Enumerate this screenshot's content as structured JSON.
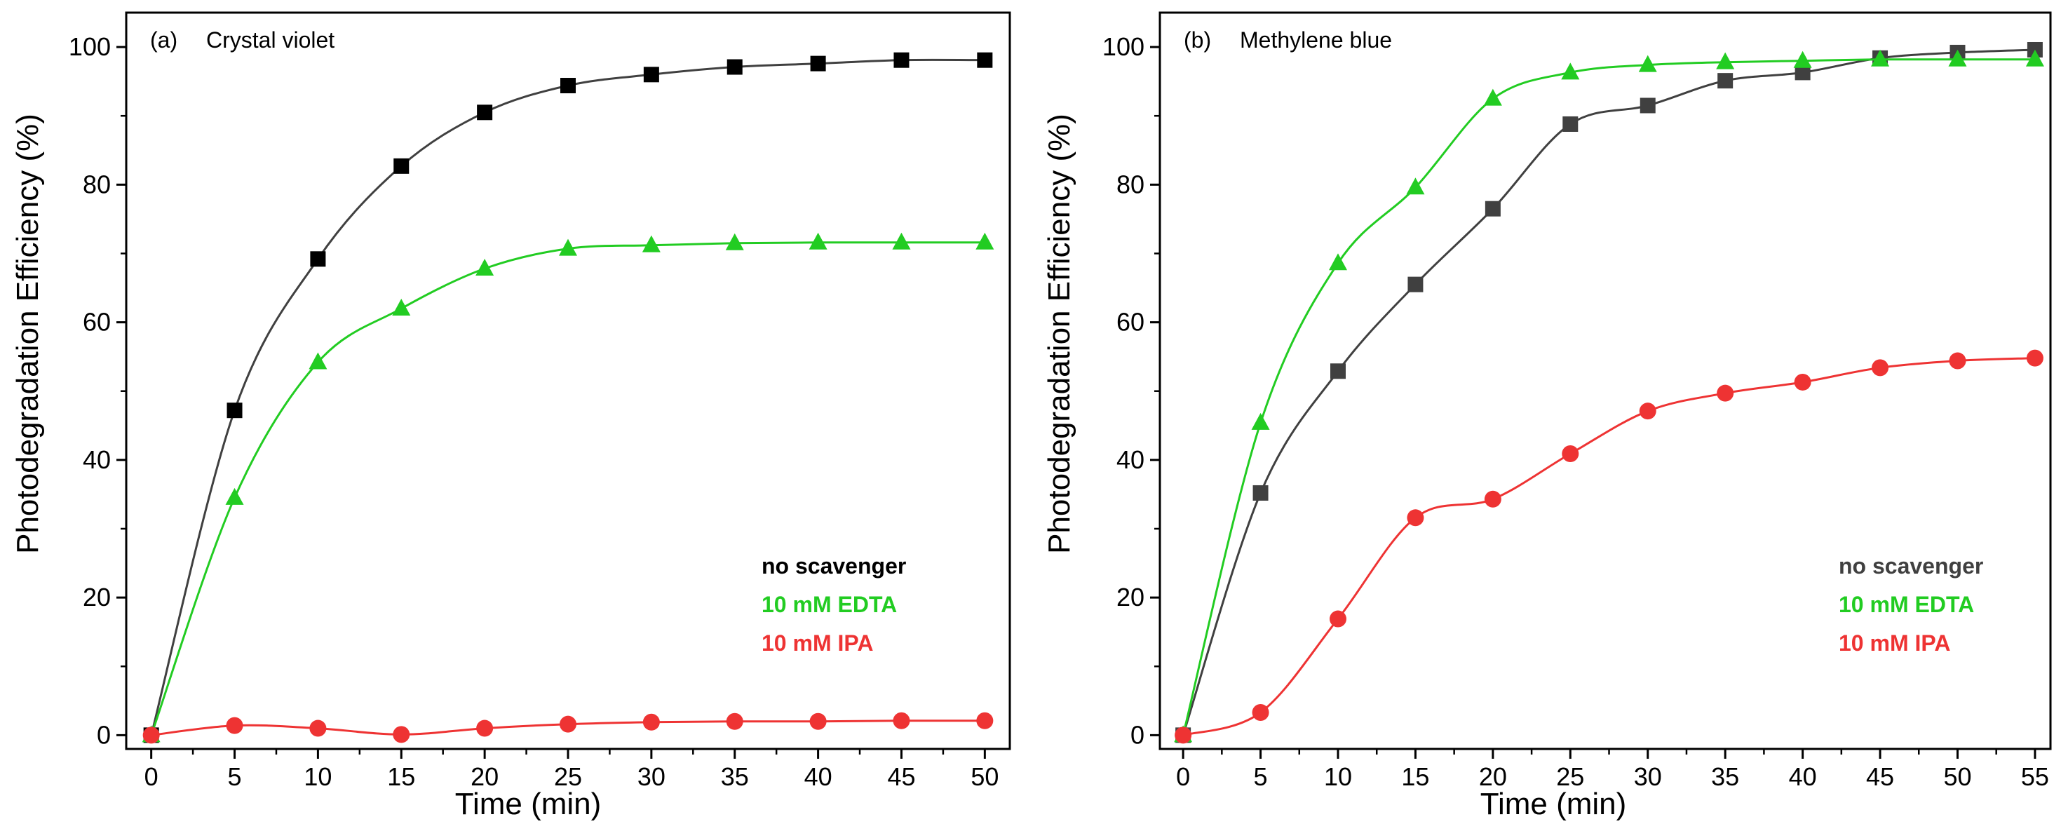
{
  "chart_data": [
    {
      "type": "scatter",
      "panel_label": "(a)",
      "title": "Crystal violet",
      "xlabel": "Time (min)",
      "ylabel": "Photodegradation Efficiency (%)",
      "xlim": [
        -1.5,
        51.5
      ],
      "ylim": [
        -2,
        105
      ],
      "xticks": [
        0,
        5,
        10,
        15,
        20,
        25,
        30,
        35,
        40,
        45,
        50
      ],
      "yticks": [
        0,
        20,
        40,
        60,
        80,
        100
      ],
      "grid": false,
      "legend_position": "bottom-right",
      "series": [
        {
          "name": "no scavenger",
          "color": "#000000",
          "line_color": "#404040",
          "marker": "square",
          "x": [
            0,
            5,
            10,
            15,
            20,
            25,
            30,
            35,
            40,
            45,
            50
          ],
          "y": [
            0,
            47.2,
            69.2,
            82.7,
            90.5,
            94.4,
            96.0,
            97.1,
            97.6,
            98.1,
            98.1
          ]
        },
        {
          "name": "10 mM EDTA",
          "color": "#22cc22",
          "line_color": "#22cc22",
          "marker": "triangle",
          "x": [
            0,
            5,
            10,
            15,
            20,
            25,
            30,
            35,
            40,
            45,
            50
          ],
          "y": [
            0,
            34.5,
            54.2,
            62.0,
            67.8,
            70.7,
            71.2,
            71.5,
            71.6,
            71.6,
            71.6
          ]
        },
        {
          "name": "10 mM IPA",
          "color": "#ee3333",
          "line_color": "#ee3333",
          "marker": "circle",
          "x": [
            0,
            5,
            10,
            15,
            20,
            25,
            30,
            35,
            40,
            45,
            50
          ],
          "y": [
            0,
            1.4,
            1.0,
            0.1,
            1.0,
            1.6,
            1.9,
            2.0,
            2.0,
            2.1,
            2.1
          ]
        }
      ]
    },
    {
      "type": "scatter",
      "panel_label": "(b)",
      "title": "Methylene blue",
      "xlabel": "Time (min)",
      "ylabel": "Photodegradation Efficiency (%)",
      "xlim": [
        -1.5,
        56
      ],
      "ylim": [
        -2,
        105
      ],
      "xticks": [
        0,
        5,
        10,
        15,
        20,
        25,
        30,
        35,
        40,
        45,
        50,
        55
      ],
      "yticks": [
        0,
        20,
        40,
        60,
        80,
        100
      ],
      "grid": false,
      "legend_position": "bottom-right",
      "series": [
        {
          "name": "no scavenger",
          "color": "#404040",
          "line_color": "#404040",
          "marker": "square",
          "x": [
            0,
            5,
            10,
            15,
            20,
            25,
            30,
            35,
            40,
            45,
            50,
            55
          ],
          "y": [
            0,
            35.2,
            52.9,
            65.5,
            76.5,
            88.8,
            91.5,
            95.1,
            96.3,
            98.4,
            99.2,
            99.6
          ]
        },
        {
          "name": "10 mM EDTA",
          "color": "#22cc22",
          "line_color": "#22cc22",
          "marker": "triangle",
          "x": [
            0,
            5,
            10,
            15,
            20,
            25,
            30,
            35,
            40,
            45,
            50,
            55
          ],
          "y": [
            0,
            45.4,
            68.6,
            79.6,
            92.5,
            96.3,
            97.4,
            97.8,
            98.0,
            98.2,
            98.2,
            98.2
          ]
        },
        {
          "name": "10 mM IPA",
          "color": "#ee3333",
          "line_color": "#ee3333",
          "marker": "circle",
          "x": [
            0,
            5,
            10,
            15,
            20,
            25,
            30,
            35,
            40,
            45,
            50,
            55
          ],
          "y": [
            0,
            3.3,
            16.9,
            31.6,
            34.3,
            40.9,
            47.1,
            49.7,
            51.3,
            53.4,
            54.4,
            54.8
          ]
        }
      ]
    }
  ]
}
